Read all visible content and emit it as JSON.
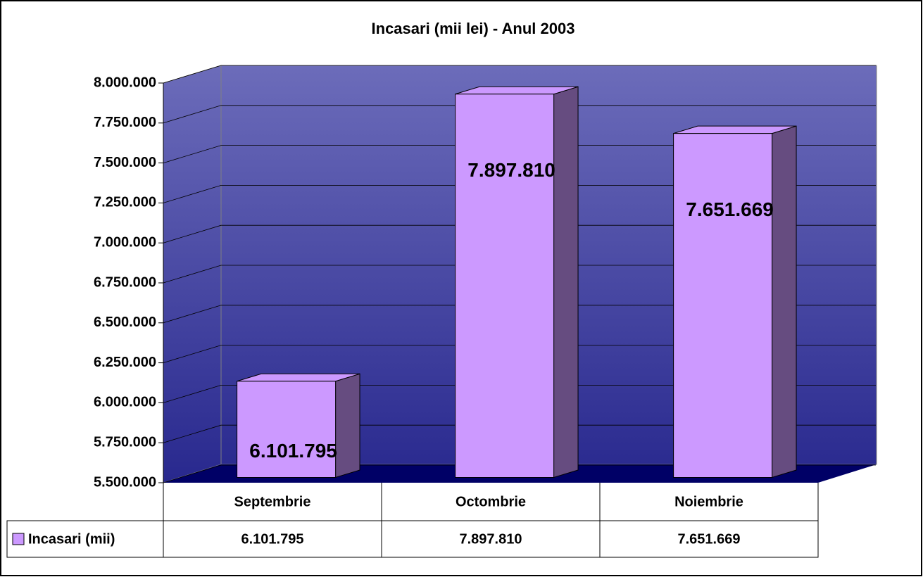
{
  "chart_data": {
    "type": "bar",
    "title": "Incasari (mii lei) - Anul 2003",
    "categories": [
      "Septembrie",
      "Octombrie",
      "Noiembrie"
    ],
    "series": [
      {
        "name": "Incasari (mii)",
        "color": "#cc99ff",
        "values": [
          6101795,
          7897810,
          7651669
        ],
        "value_labels": [
          "6.101.795",
          "7.897.810",
          "7.651.669"
        ]
      }
    ],
    "ylim": [
      5500000,
      8000000
    ],
    "yticks": [
      {
        "value": 5500000,
        "label": "5.500.000"
      },
      {
        "value": 5750000,
        "label": "5.750.000"
      },
      {
        "value": 6000000,
        "label": "6.000.000"
      },
      {
        "value": 6250000,
        "label": "6.250.000"
      },
      {
        "value": 6500000,
        "label": "6.500.000"
      },
      {
        "value": 6750000,
        "label": "6.750.000"
      },
      {
        "value": 7000000,
        "label": "7.000.000"
      },
      {
        "value": 7250000,
        "label": "7.250.000"
      },
      {
        "value": 7500000,
        "label": "7.500.000"
      },
      {
        "value": 7750000,
        "label": "7.750.000"
      },
      {
        "value": 8000000,
        "label": "8.000.000"
      }
    ],
    "grid": true
  }
}
